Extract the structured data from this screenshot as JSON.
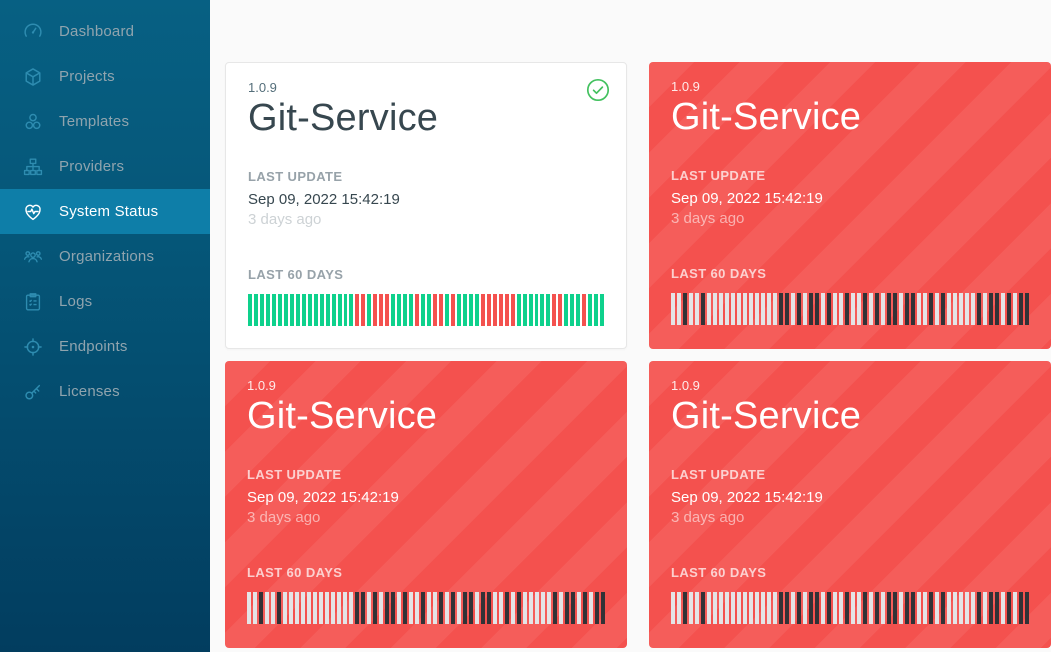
{
  "sidebar": {
    "items": [
      {
        "label": "Dashboard",
        "icon": "gauge-icon",
        "active": false
      },
      {
        "label": "Projects",
        "icon": "cube-icon",
        "active": false
      },
      {
        "label": "Templates",
        "icon": "modules-icon",
        "active": false
      },
      {
        "label": "Providers",
        "icon": "sitemap-icon",
        "active": false
      },
      {
        "label": "System Status",
        "icon": "heart-pulse-icon",
        "active": true
      },
      {
        "label": "Organizations",
        "icon": "people-icon",
        "active": false
      },
      {
        "label": "Logs",
        "icon": "clipboard-icon",
        "active": false
      },
      {
        "label": "Endpoints",
        "icon": "target-icon",
        "active": false
      },
      {
        "label": "Licenses",
        "icon": "key-icon",
        "active": false
      }
    ]
  },
  "card_labels": {
    "last_update": "LAST UPDATE",
    "last_60_days": "LAST 60 DAYS"
  },
  "bar_colors": {
    "G": "#0ed18c",
    "R": "#f4514e",
    "L": "#e4e4e6",
    "D": "#323236"
  },
  "colors": {
    "sidebar_top": "#076083",
    "sidebar_bottom": "#023d5f",
    "sidebar_active": "#0e7ea8",
    "healthy_green": "#43c15f",
    "unhealthy_red": "#f4514e",
    "page_background": "#fafafa"
  },
  "cards": [
    {
      "version": "1.0.9",
      "title": "Git-Service",
      "status": "up",
      "last_update": "Sep 09, 2022 15:42:19",
      "relative_time": "3 days ago",
      "bars": "GGGGGGGGGGGGGGGGGGRRGRRRGGGGRGGRRGRGGGGRRRRRRGGGGGGRRGGGRGGG"
    },
    {
      "version": "1.0.9",
      "title": "Git-Service",
      "status": "down",
      "last_update": "Sep 09, 2022 15:42:19",
      "relative_time": "3 days ago",
      "bars": "LLDLLDLLLLLLLLLLLLDDLDLDDLDLLDLLDLDLDDLDDLLDLDLLLLLDLDDLDLDD"
    },
    {
      "version": "1.0.9",
      "title": "Git-Service",
      "status": "down",
      "last_update": "Sep 09, 2022 15:42:19",
      "relative_time": "3 days ago",
      "bars": "LLDLLDLLLLLLLLLLLLDDLDLDDLDLLDLLDLDLDDLDDLLDLDLLLLLDLDDLDLDD"
    },
    {
      "version": "1.0.9",
      "title": "Git-Service",
      "status": "down",
      "last_update": "Sep 09, 2022 15:42:19",
      "relative_time": "3 days ago",
      "bars": "LLDLLDLLLLLLLLLLLLDDLDLDDLDLLDLLDLDLDDLDDLLDLDLLLLLDLDDLDLDD"
    }
  ]
}
